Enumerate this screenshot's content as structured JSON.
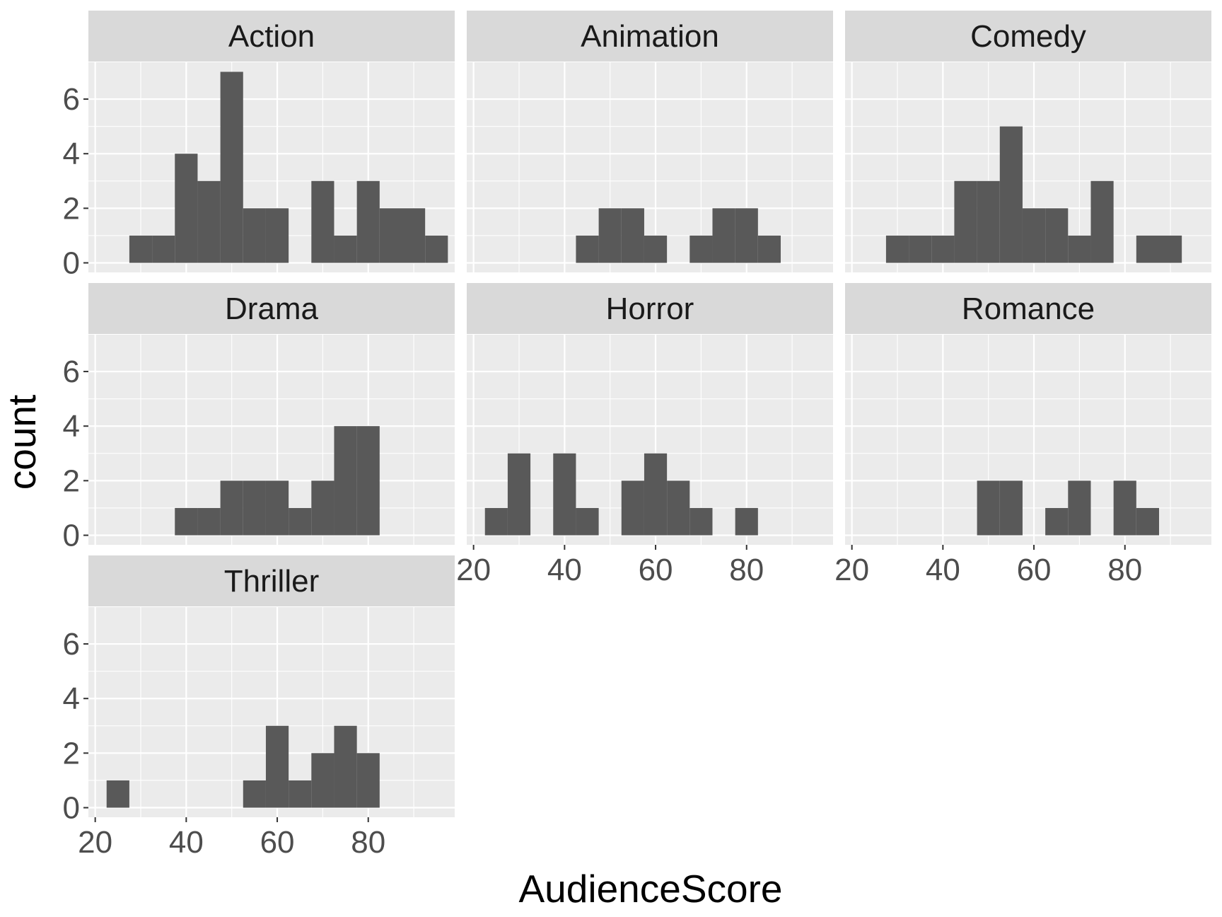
{
  "chart_data": {
    "type": "bar",
    "xlabel": "AudienceScore",
    "ylabel": "count",
    "xlim": [
      18.5,
      99
    ],
    "ylim": [
      -0.35,
      7.35
    ],
    "x_ticks": [
      20,
      40,
      60,
      80
    ],
    "y_ticks": [
      0,
      2,
      4,
      6
    ],
    "grid": true,
    "bin_width": 5,
    "bin_centers": [
      25,
      30,
      35,
      40,
      45,
      50,
      55,
      60,
      65,
      70,
      75,
      80,
      85,
      90,
      95
    ],
    "panels": [
      {
        "name": "Action",
        "counts": [
          0,
          1,
          1,
          4,
          3,
          7,
          2,
          2,
          0,
          3,
          1,
          3,
          2,
          2,
          1
        ]
      },
      {
        "name": "Animation",
        "counts": [
          0,
          0,
          0,
          0,
          1,
          2,
          2,
          1,
          0,
          1,
          2,
          2,
          1,
          0,
          0
        ]
      },
      {
        "name": "Comedy",
        "counts": [
          0,
          1,
          1,
          1,
          3,
          3,
          5,
          2,
          2,
          1,
          3,
          0,
          1,
          1,
          0
        ]
      },
      {
        "name": "Drama",
        "counts": [
          0,
          0,
          0,
          1,
          1,
          2,
          2,
          2,
          1,
          2,
          4,
          4,
          0,
          0,
          0
        ]
      },
      {
        "name": "Horror",
        "counts": [
          1,
          3,
          0,
          3,
          1,
          0,
          2,
          3,
          2,
          1,
          0,
          1,
          0,
          0,
          0
        ]
      },
      {
        "name": "Romance",
        "counts": [
          0,
          0,
          0,
          0,
          0,
          2,
          2,
          0,
          1,
          2,
          0,
          2,
          1,
          0,
          0
        ]
      },
      {
        "name": "Thriller",
        "counts": [
          1,
          0,
          0,
          0,
          0,
          0,
          1,
          3,
          1,
          2,
          3,
          2,
          0,
          0,
          0
        ]
      }
    ],
    "colors": {
      "bar": "#595959",
      "panel_bg": "#ebebeb",
      "strip_bg": "#d9d9d9",
      "grid": "#ffffff"
    }
  }
}
